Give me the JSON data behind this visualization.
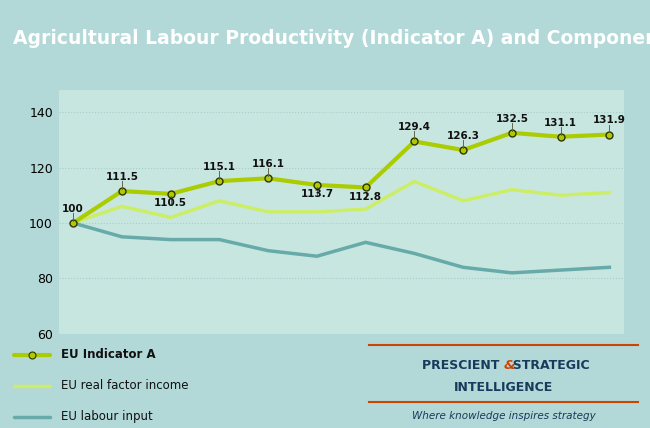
{
  "title": "Agricultural Labour Productivity (Indicator A) and Components",
  "title_bg_color": "#2e6b7a",
  "title_text_color": "#ffffff",
  "background_color": "#b2d8d8",
  "plot_bg_color": "#c8e6e0",
  "x_values": [
    0,
    1,
    2,
    3,
    4,
    5,
    6,
    7,
    8,
    9,
    10,
    11
  ],
  "indicator_a": [
    100,
    111.5,
    110.5,
    115.1,
    116.1,
    113.7,
    112.8,
    129.4,
    126.3,
    132.5,
    131.1,
    131.9
  ],
  "real_factor": [
    100,
    106,
    102,
    108,
    104,
    104,
    105,
    115,
    108,
    112,
    110,
    111
  ],
  "labour_input": [
    100,
    95,
    94,
    94,
    90,
    88,
    93,
    89,
    84,
    82,
    83,
    84
  ],
  "indicator_a_color": "#aacc00",
  "real_factor_color": "#ccee66",
  "labour_input_color": "#66aaaa",
  "ylim": [
    60,
    148
  ],
  "yticks": [
    60,
    80,
    100,
    120,
    140
  ],
  "grid_color": "#aacccc",
  "label_indicator_a": "EU Indicator A",
  "label_real_factor": "EU real factor income",
  "label_labour_input": "EU labour input",
  "logo_text_line1": "PRESCIENT & STRATEGIC",
  "logo_text_line2": "INTELLIGENCE",
  "logo_subtext": "Where knowledge inspires strategy",
  "logo_ampersand_color": "#cc4400",
  "logo_text_color": "#1a3a5c",
  "logo_line_color": "#cc4400"
}
